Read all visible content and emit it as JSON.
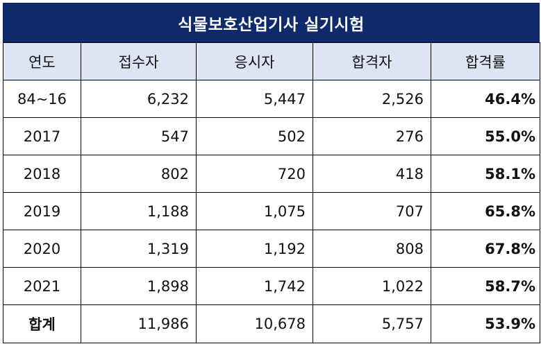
{
  "title": "식물보호산업기사 실기시험",
  "headers": [
    "연도",
    "접수자",
    "응시자",
    "합격자",
    "합격률"
  ],
  "rows": [
    [
      "84~16",
      "6,232",
      "5,447",
      "2,526",
      "46.4%"
    ],
    [
      "2017",
      "547",
      "502",
      "276",
      "55.0%"
    ],
    [
      "2018",
      "802",
      "720",
      "418",
      "58.1%"
    ],
    [
      "2019",
      "1,188",
      "1,075",
      "707",
      "65.8%"
    ],
    [
      "2020",
      "1,319",
      "1,192",
      "808",
      "67.8%"
    ],
    [
      "2021",
      "1,898",
      "1,742",
      "1,022",
      "58.7%"
    ],
    [
      "합계",
      "11,986",
      "10,678",
      "5,757",
      "53.9%"
    ]
  ],
  "colors": {
    "title_bg": "#0f2a6b",
    "header_bg": "#dde4f4"
  }
}
